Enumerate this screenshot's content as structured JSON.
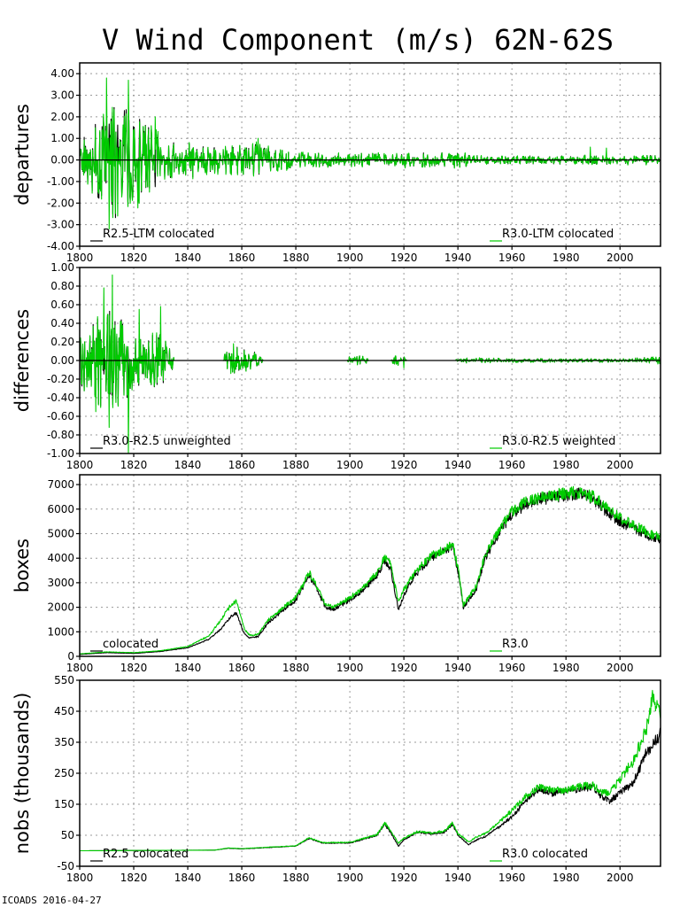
{
  "page": {
    "title": "V Wind Component (m/s) 62N-62S",
    "footer": "ICOADS 2016-04-27"
  },
  "colors": {
    "series_a": "#000000",
    "series_b": "#00cc00",
    "grid": "#9a9a9a",
    "zero_line": "#000000"
  },
  "chart_data": [
    {
      "type": "line",
      "id": "departures",
      "ylabel": "departures",
      "xlim": [
        1800,
        2015
      ],
      "ylim": [
        -4,
        4.5
      ],
      "x_ticks": [
        1800,
        1820,
        1840,
        1860,
        1880,
        1900,
        1920,
        1940,
        1960,
        1980,
        2000
      ],
      "y_ticks": [
        -4,
        -3,
        -2,
        -1,
        0,
        1,
        2,
        3,
        4
      ],
      "y_tick_labels": [
        "-4.00",
        "-3.00",
        "-2.00",
        "-1.00",
        "0.00",
        "1.00",
        "2.00",
        "3.00",
        "4.00"
      ],
      "grid": true,
      "zero_line": true,
      "legend_left": "R2.5-LTM colocated",
      "legend_right": "R3.0-LTM colocated",
      "noise_amplitude": [
        [
          1800,
          1.2
        ],
        [
          1808,
          2.0
        ],
        [
          1812,
          2.8
        ],
        [
          1818,
          2.5
        ],
        [
          1825,
          1.6
        ],
        [
          1834,
          1.0
        ],
        [
          1850,
          0.6
        ],
        [
          1866,
          0.75
        ],
        [
          1880,
          0.35
        ],
        [
          1900,
          0.3
        ],
        [
          1940,
          0.35
        ],
        [
          1950,
          0.18
        ],
        [
          2015,
          0.22
        ]
      ],
      "spikes": [
        [
          1810,
          3.8
        ],
        [
          1818,
          3.7
        ],
        [
          1811,
          -3.2
        ],
        [
          1814,
          -2.6
        ],
        [
          1822,
          -2.0
        ],
        [
          1828,
          2.0
        ],
        [
          1866,
          1.0
        ],
        [
          1989,
          0.6
        ],
        [
          1995,
          0.55
        ]
      ],
      "series": [
        {
          "name": "R2.5-LTM colocated",
          "kind": "noise",
          "seed": 11
        },
        {
          "name": "R3.0-LTM colocated",
          "kind": "noise",
          "seed": 11,
          "jitter": 0.15
        }
      ]
    },
    {
      "type": "line",
      "id": "differences",
      "ylabel": "differences",
      "xlim": [
        1800,
        2015
      ],
      "ylim": [
        -1.0,
        1.0
      ],
      "x_ticks": [
        1800,
        1820,
        1840,
        1860,
        1880,
        1900,
        1920,
        1940,
        1960,
        1980,
        2000
      ],
      "y_ticks": [
        -1.0,
        -0.8,
        -0.6,
        -0.4,
        -0.2,
        0.0,
        0.2,
        0.4,
        0.6,
        0.8,
        1.0
      ],
      "y_tick_labels": [
        "-1.00",
        "-0.80",
        "-0.60",
        "-0.40",
        "-0.20",
        "0.00",
        "0.20",
        "0.40",
        "0.60",
        "0.80",
        "1.00"
      ],
      "grid": true,
      "zero_line": true,
      "legend_left": "R3.0-R2.5 unweighted",
      "legend_right": "R3.0-R2.5 weighted",
      "noise_amplitude": [
        [
          1800,
          0.3
        ],
        [
          1805,
          0.45
        ],
        [
          1812,
          0.55
        ],
        [
          1820,
          0.35
        ],
        [
          1830,
          0.3
        ],
        [
          1834,
          0.15
        ],
        [
          1835,
          0.0
        ],
        [
          1853,
          0.0
        ],
        [
          1854,
          0.1
        ],
        [
          1858,
          0.15
        ],
        [
          1866,
          0.08
        ],
        [
          1868,
          0.0
        ],
        [
          1899,
          0.0
        ],
        [
          1900,
          0.05
        ],
        [
          1906,
          0.05
        ],
        [
          1907,
          0.0
        ],
        [
          1915,
          0.0
        ],
        [
          1916,
          0.05
        ],
        [
          1920,
          0.05
        ],
        [
          1921,
          0.0
        ],
        [
          1939,
          0.0
        ],
        [
          1940,
          0.03
        ],
        [
          1950,
          0.03
        ],
        [
          1960,
          0.02
        ],
        [
          2000,
          0.02
        ],
        [
          2015,
          0.04
        ]
      ],
      "spikes": [
        [
          1812,
          0.92
        ],
        [
          1809,
          0.78
        ],
        [
          1818,
          -1.0
        ],
        [
          1811,
          -0.72
        ],
        [
          1822,
          0.55
        ],
        [
          1830,
          0.58
        ],
        [
          1806,
          -0.55
        ],
        [
          1857,
          0.18
        ],
        [
          1856,
          -0.14
        ],
        [
          1920,
          -0.08
        ]
      ],
      "series": [
        {
          "name": "R3.0-R2.5 unweighted",
          "kind": "noise",
          "seed": 23
        },
        {
          "name": "R3.0-R2.5 weighted",
          "kind": "noise",
          "seed": 23,
          "jitter": 0.1
        }
      ]
    },
    {
      "type": "line",
      "id": "boxes",
      "ylabel": "boxes",
      "xlim": [
        1800,
        2015
      ],
      "ylim": [
        0,
        7400
      ],
      "x_ticks": [
        1800,
        1820,
        1840,
        1860,
        1880,
        1900,
        1920,
        1940,
        1960,
        1980,
        2000
      ],
      "y_ticks": [
        0,
        1000,
        2000,
        3000,
        4000,
        5000,
        6000,
        7000
      ],
      "y_tick_labels": [
        "0",
        "1000",
        "2000",
        "3000",
        "4000",
        "5000",
        "6000",
        "7000"
      ],
      "grid": true,
      "zero_line": false,
      "legend_left": "colocated",
      "legend_right": "R3.0",
      "noise_fraction": 0.04,
      "series": [
        {
          "name": "colocated",
          "kind": "trend",
          "seed": 5,
          "points": [
            [
              1800,
              80
            ],
            [
              1810,
              150
            ],
            [
              1820,
              120
            ],
            [
              1830,
              200
            ],
            [
              1840,
              350
            ],
            [
              1848,
              700
            ],
            [
              1853,
              1200
            ],
            [
              1856,
              1650
            ],
            [
              1858,
              1750
            ],
            [
              1861,
              900
            ],
            [
              1863,
              750
            ],
            [
              1866,
              800
            ],
            [
              1870,
              1400
            ],
            [
              1880,
              2300
            ],
            [
              1885,
              3300
            ],
            [
              1887,
              2900
            ],
            [
              1891,
              2000
            ],
            [
              1894,
              1900
            ],
            [
              1900,
              2300
            ],
            [
              1905,
              2700
            ],
            [
              1910,
              3300
            ],
            [
              1913,
              3900
            ],
            [
              1915,
              3600
            ],
            [
              1918,
              1900
            ],
            [
              1920,
              2500
            ],
            [
              1924,
              3300
            ],
            [
              1930,
              4000
            ],
            [
              1935,
              4300
            ],
            [
              1938,
              4500
            ],
            [
              1940,
              3500
            ],
            [
              1942,
              2000
            ],
            [
              1944,
              2300
            ],
            [
              1947,
              2800
            ],
            [
              1950,
              4000
            ],
            [
              1955,
              5000
            ],
            [
              1960,
              5800
            ],
            [
              1965,
              6200
            ],
            [
              1970,
              6400
            ],
            [
              1975,
              6500
            ],
            [
              1985,
              6650
            ],
            [
              1990,
              6400
            ],
            [
              1995,
              5900
            ],
            [
              2000,
              5500
            ],
            [
              2005,
              5200
            ],
            [
              2010,
              4950
            ],
            [
              2015,
              4700
            ]
          ]
        },
        {
          "name": "R3.0",
          "kind": "trend",
          "seed": 6,
          "points": [
            [
              1800,
              100
            ],
            [
              1810,
              180
            ],
            [
              1820,
              150
            ],
            [
              1830,
              230
            ],
            [
              1840,
              400
            ],
            [
              1848,
              850
            ],
            [
              1853,
              1600
            ],
            [
              1856,
              2100
            ],
            [
              1858,
              2250
            ],
            [
              1861,
              1100
            ],
            [
              1863,
              850
            ],
            [
              1866,
              900
            ],
            [
              1870,
              1500
            ],
            [
              1880,
              2400
            ],
            [
              1885,
              3400
            ],
            [
              1887,
              3000
            ],
            [
              1891,
              2100
            ],
            [
              1894,
              2000
            ],
            [
              1900,
              2400
            ],
            [
              1905,
              2800
            ],
            [
              1910,
              3400
            ],
            [
              1913,
              4050
            ],
            [
              1915,
              3800
            ],
            [
              1918,
              2200
            ],
            [
              1920,
              2700
            ],
            [
              1924,
              3400
            ],
            [
              1930,
              4100
            ],
            [
              1935,
              4350
            ],
            [
              1938,
              4600
            ],
            [
              1940,
              3600
            ],
            [
              1942,
              2100
            ],
            [
              1944,
              2400
            ],
            [
              1947,
              2900
            ],
            [
              1950,
              4100
            ],
            [
              1955,
              5100
            ],
            [
              1960,
              5900
            ],
            [
              1965,
              6300
            ],
            [
              1970,
              6450
            ],
            [
              1975,
              6550
            ],
            [
              1985,
              6700
            ],
            [
              1990,
              6500
            ],
            [
              1995,
              6050
            ],
            [
              2000,
              5650
            ],
            [
              2005,
              5350
            ],
            [
              2010,
              5050
            ],
            [
              2015,
              4850
            ]
          ]
        }
      ]
    },
    {
      "type": "line",
      "id": "nobs",
      "ylabel": "nobs (thousands)",
      "xlim": [
        1800,
        2015
      ],
      "ylim": [
        -50,
        550
      ],
      "x_ticks": [
        1800,
        1820,
        1840,
        1860,
        1880,
        1900,
        1920,
        1940,
        1960,
        1980,
        2000
      ],
      "y_ticks": [
        -50,
        50,
        150,
        250,
        350,
        450,
        550
      ],
      "y_tick_labels": [
        "-50",
        "50",
        "150",
        "250",
        "350",
        "450",
        "550"
      ],
      "grid": true,
      "zero_line": false,
      "legend_left": "R2.5 colocated",
      "legend_right": "R3.0 colocated",
      "noise_fraction": 0.06,
      "series": [
        {
          "name": "R2.5 colocated",
          "kind": "trend",
          "seed": 8,
          "points": [
            [
              1800,
              0
            ],
            [
              1850,
              2
            ],
            [
              1855,
              8
            ],
            [
              1860,
              6
            ],
            [
              1880,
              15
            ],
            [
              1885,
              40
            ],
            [
              1890,
              25
            ],
            [
              1900,
              25
            ],
            [
              1910,
              50
            ],
            [
              1913,
              85
            ],
            [
              1915,
              60
            ],
            [
              1918,
              15
            ],
            [
              1920,
              35
            ],
            [
              1925,
              60
            ],
            [
              1930,
              55
            ],
            [
              1935,
              60
            ],
            [
              1938,
              85
            ],
            [
              1940,
              50
            ],
            [
              1944,
              20
            ],
            [
              1947,
              35
            ],
            [
              1950,
              45
            ],
            [
              1955,
              75
            ],
            [
              1960,
              110
            ],
            [
              1965,
              160
            ],
            [
              1970,
              200
            ],
            [
              1975,
              185
            ],
            [
              1980,
              190
            ],
            [
              1985,
              200
            ],
            [
              1990,
              205
            ],
            [
              1993,
              175
            ],
            [
              1996,
              160
            ],
            [
              2000,
              185
            ],
            [
              2005,
              220
            ],
            [
              2010,
              320
            ],
            [
              2015,
              380
            ]
          ]
        },
        {
          "name": "R3.0 colocated",
          "kind": "trend",
          "seed": 9,
          "points": [
            [
              1800,
              0
            ],
            [
              1850,
              2
            ],
            [
              1855,
              9
            ],
            [
              1860,
              7
            ],
            [
              1880,
              16
            ],
            [
              1885,
              42
            ],
            [
              1890,
              26
            ],
            [
              1900,
              27
            ],
            [
              1910,
              52
            ],
            [
              1913,
              90
            ],
            [
              1915,
              65
            ],
            [
              1918,
              25
            ],
            [
              1920,
              40
            ],
            [
              1925,
              62
            ],
            [
              1930,
              57
            ],
            [
              1935,
              63
            ],
            [
              1938,
              90
            ],
            [
              1940,
              55
            ],
            [
              1944,
              28
            ],
            [
              1947,
              45
            ],
            [
              1950,
              55
            ],
            [
              1955,
              90
            ],
            [
              1960,
              130
            ],
            [
              1965,
              175
            ],
            [
              1970,
              205
            ],
            [
              1975,
              195
            ],
            [
              1980,
              195
            ],
            [
              1985,
              208
            ],
            [
              1990,
              212
            ],
            [
              1993,
              190
            ],
            [
              1996,
              185
            ],
            [
              2000,
              230
            ],
            [
              2005,
              290
            ],
            [
              2010,
              400
            ],
            [
              2012,
              490
            ],
            [
              2015,
              440
            ]
          ]
        }
      ]
    }
  ]
}
